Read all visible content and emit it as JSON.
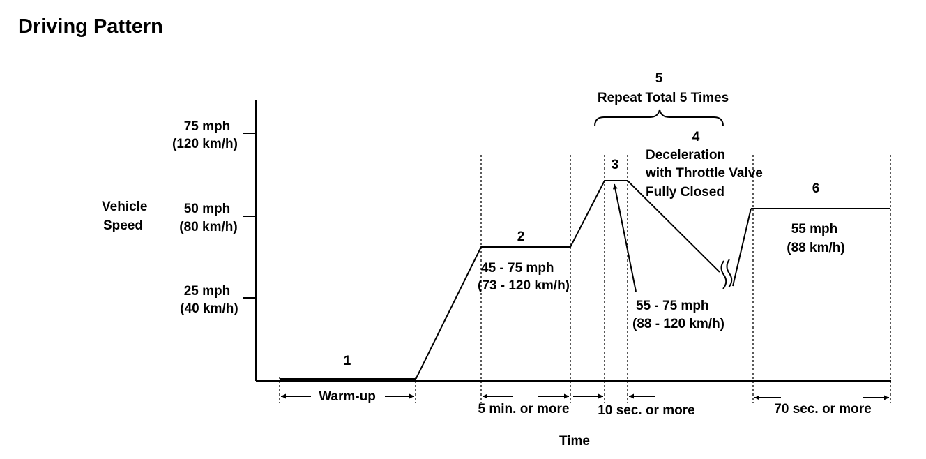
{
  "title": "Driving Pattern",
  "y_axis": {
    "label_line1": "Vehicle",
    "label_line2": "Speed",
    "ticks": [
      {
        "line1": "75 mph",
        "line2": "(120 km/h)"
      },
      {
        "line1": "50 mph",
        "line2": "(80 km/h)"
      },
      {
        "line1": "25 mph",
        "line2": "(40 km/h)"
      }
    ]
  },
  "x_axis": {
    "label": "Time"
  },
  "phases": {
    "p1": {
      "number": "1",
      "duration": "Warm-up"
    },
    "p2": {
      "number": "2",
      "speed_line1": "45 - 75 mph",
      "speed_line2": "(73 - 120 km/h)",
      "duration": "5 min. or more"
    },
    "p3": {
      "number": "3",
      "speed_line1": "55 - 75 mph",
      "speed_line2": "(88 - 120 km/h)",
      "duration": "10 sec. or more"
    },
    "p4": {
      "number": "4",
      "line1": "Deceleration",
      "line2": "with Throttle Valve",
      "line3": "Fully Closed"
    },
    "p5": {
      "number": "5",
      "label": "Repeat Total 5 Times"
    },
    "p6": {
      "number": "6",
      "speed_line1": "55 mph",
      "speed_line2": "(88 km/h)",
      "duration": "70 sec. or more"
    }
  }
}
